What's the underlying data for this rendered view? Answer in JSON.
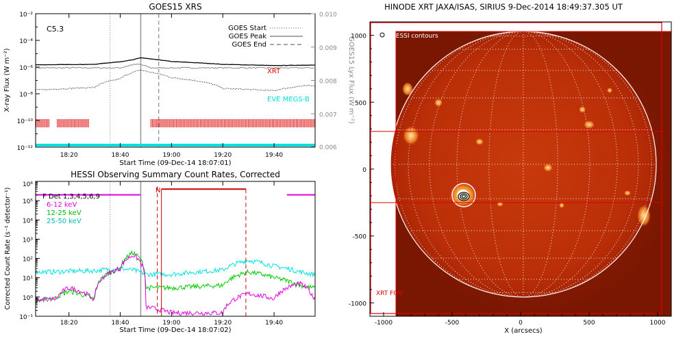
{
  "goes_panel": {
    "title": "GOES15 XRS",
    "class_label": "C5.3",
    "ylabel_left": "X-ray Flux (W m⁻²)",
    "ylabel_right": "GOES15 Lyx Flux (W m⁻²)",
    "xlabel": "Start Time (09-Dec-14 18:07:01)",
    "xticks": [
      "18:20",
      "18:40",
      "19:00",
      "19:20",
      "19:40"
    ],
    "yticks_left": [
      "10⁻²",
      "10⁻⁴",
      "10⁻⁶",
      "10⁻⁸",
      "10⁻¹⁰",
      "10⁻¹²"
    ],
    "yticks_right": [
      "0.010",
      "0.009",
      "0.008",
      "0.007",
      "0.006"
    ],
    "legend": [
      {
        "label": "GOES Start",
        "style": "dotted"
      },
      {
        "label": "GOES Peak",
        "style": "solid"
      },
      {
        "label": "GOES End",
        "style": "dashed"
      }
    ],
    "xrt_label": "XRT",
    "eve_label": "EVE MEGS-B",
    "colors": {
      "xrt": "#dd0000",
      "eve": "#00e0e0",
      "lyx": "#555555"
    }
  },
  "hessi_panel": {
    "title": "HESSI Observing Summary Count Rates, Corrected",
    "ylabel": "Corrected Count Rate (s⁻¹ detector⁻¹)",
    "xlabel": "Start Time (09-Dec-14 18:07:02)",
    "xticks": [
      "18:20",
      "18:40",
      "19:00",
      "19:20",
      "19:40"
    ],
    "yticks": [
      "10⁵",
      "10⁴",
      "10³",
      "10²",
      "10¹",
      "10⁰",
      "10⁻¹"
    ],
    "legend": [
      {
        "label": "F Det 1,3,4,5,6,9",
        "color": "#000000"
      },
      {
        "label": "6-12 keV",
        "color": "#dd00dd"
      },
      {
        "label": "12-25 keV",
        "color": "#00cc00"
      },
      {
        "label": "25-50 keV",
        "color": "#00cccc"
      }
    ],
    "flag_n": "N"
  },
  "xrt_panel": {
    "title": "HINODE XRT JAXA/ISAS, SIRIUS   9-Dec-2014 18:49:37.305 UT",
    "legend": "HESSI contours",
    "fov_label": "XRT FOV",
    "xlabel": "X (arcsecs)",
    "xticks": [
      "-1000",
      "-500",
      "0",
      "500",
      "1000"
    ],
    "yticks": [
      "1000",
      "500",
      "0",
      "-500",
      "-1000"
    ]
  },
  "chart_data": [
    {
      "type": "line",
      "title": "GOES15 XRS",
      "xlabel": "Start Time (09-Dec-14 18:07:01)",
      "ylabel": "X-ray Flux (W m⁻²)",
      "y_scale": "log",
      "ylim": [
        1e-12,
        0.01
      ],
      "x": [
        "18:10",
        "18:30",
        "18:40",
        "18:45",
        "18:48",
        "18:52",
        "19:00",
        "19:20",
        "19:40",
        "19:52"
      ],
      "series": [
        {
          "name": "GOES high",
          "values": [
            1.5e-06,
            1.6e-06,
            2.5e-06,
            3.5e-06,
            5e-06,
            4e-06,
            2.6e-06,
            1.6e-06,
            1.3e-06,
            1.4e-06
          ]
        },
        {
          "name": "GOES low",
          "values": [
            2e-08,
            3e-08,
            1.3e-07,
            4e-07,
            6e-07,
            4e-07,
            1.6e-07,
            2.5e-08,
            1.7e-08,
            4e-08
          ]
        },
        {
          "name": "GOES15 Lyx",
          "values": [
            0.0085,
            0.0085,
            0.0085,
            0.0086,
            0.0086,
            0.0085,
            0.0085,
            0.0085,
            0.0085,
            0.0085
          ]
        }
      ],
      "markers": {
        "GOES Start": "18:36",
        "GOES Peak": "18:48",
        "GOES End": "18:55"
      }
    },
    {
      "type": "line",
      "title": "HESSI Observing Summary Count Rates, Corrected",
      "xlabel": "Start Time (09-Dec-14 18:07:02)",
      "ylabel": "Corrected Count Rate (s⁻¹ detector⁻¹)",
      "y_scale": "log",
      "ylim": [
        0.1,
        1000000.0
      ],
      "x": [
        "18:07",
        "18:15",
        "18:20",
        "18:30",
        "18:40",
        "18:45",
        "18:50",
        "19:00",
        "19:20",
        "19:30",
        "19:40",
        "19:50",
        "19:55"
      ],
      "series": [
        {
          "name": "6-12 keV",
          "values": [
            0.7,
            0.8,
            3,
            0.7,
            30,
            150,
            0.3,
            0.15,
            0.15,
            1.5,
            0.8,
            5,
            1
          ]
        },
        {
          "name": "12-25 keV",
          "values": [
            0.6,
            0.9,
            2,
            0.7,
            30,
            200,
            3,
            3,
            4,
            20,
            10,
            4,
            3
          ]
        },
        {
          "name": "25-50 keV",
          "values": [
            20,
            20,
            22,
            23,
            30,
            25,
            15,
            15,
            25,
            80,
            40,
            20,
            15
          ]
        }
      ],
      "flags": [
        {
          "label": "N",
          "start": "18:55",
          "end": "19:29"
        }
      ]
    },
    {
      "type": "heatmap",
      "title": "HINODE XRT JAXA/ISAS, SIRIUS   9-Dec-2014 18:49:37.305 UT",
      "xlabel": "X (arcsecs)",
      "xlim": [
        -1100,
        1100
      ],
      "ylim": [
        -1100,
        1100
      ],
      "solar_radius": 975,
      "hessi_source": {
        "x": -410,
        "y": -250
      }
    }
  ]
}
